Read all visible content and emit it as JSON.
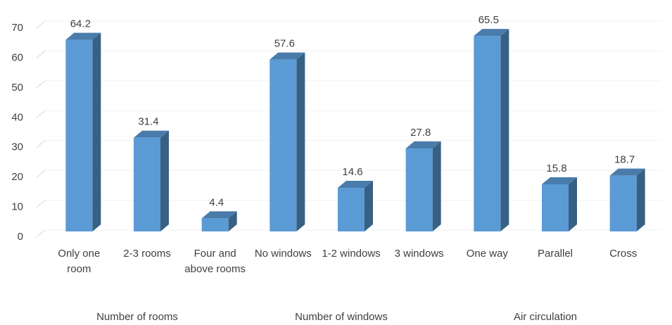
{
  "chart_data": {
    "type": "bar3d",
    "categories": [
      "Only one room",
      "2-3 rooms",
      "Four and above rooms",
      "No windows",
      "1-2 windows",
      "3 windows",
      "One way",
      "Parallel",
      "Cross"
    ],
    "values": [
      64.2,
      31.4,
      4.4,
      57.6,
      14.6,
      27.8,
      65.5,
      15.8,
      18.7
    ],
    "group_labels": [
      "Number of rooms",
      "Number of windows",
      "Air circulation"
    ],
    "color": "#5b9bd5",
    "ylim": [
      0,
      70
    ],
    "yticks": [
      0,
      10,
      20,
      30,
      40,
      50,
      60,
      70
    ],
    "grid": true
  }
}
